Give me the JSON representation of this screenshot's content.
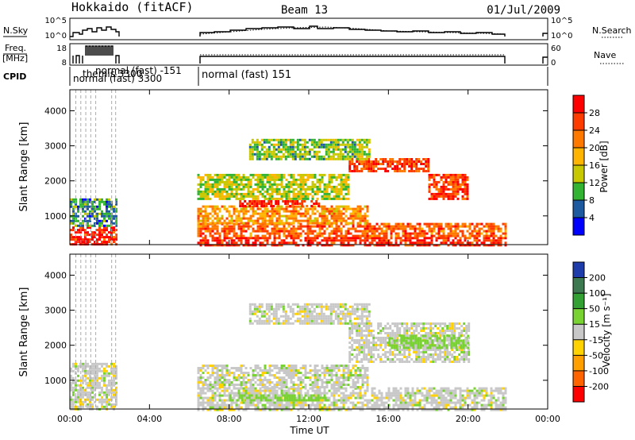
{
  "header": {
    "station": "Hokkaido (fitACF)",
    "beam": "Beam 13",
    "date": "01/Jul/2009"
  },
  "strips": {
    "nsky": {
      "label": "N.Sky",
      "ticks": [
        "10^5",
        "10^0"
      ],
      "right_label": "N.Search",
      "right_ticks": [
        "10^5",
        "10^0"
      ]
    },
    "freq": {
      "label": "Freq.",
      "unit": "[MHz]",
      "ticks": [
        "18",
        "8"
      ],
      "right_label": "Nave",
      "right_ticks": [
        "60",
        "0"
      ]
    },
    "cpid": {
      "label": "CPID",
      "modes": [
        {
          "text": "normal (fast)  151"
        },
        {
          "text": "normal (fast) -151"
        },
        {
          "text": "themis 3300"
        },
        {
          "text": "normal (fast) 3300"
        }
      ]
    }
  },
  "chart_data": [
    {
      "type": "heatmap",
      "name": "power",
      "xlabel": "Time UT",
      "ylabel": "Slant Range [km]",
      "x_ticks": [
        "00:00",
        "04:00",
        "08:00",
        "12:00",
        "16:00",
        "20:00",
        "00:00"
      ],
      "x_range_hours": [
        0,
        24
      ],
      "ylim": [
        180,
        4600
      ],
      "y_ticks": [
        1000,
        2000,
        3000,
        4000
      ],
      "colorbar": {
        "label": "Power [dB]",
        "ticks": [
          "28",
          "24",
          "20",
          "16",
          "12",
          "8",
          "4"
        ],
        "levels": [
          {
            "value": 30,
            "color": "#ff0000"
          },
          {
            "value": 26,
            "color": "#ff3c00"
          },
          {
            "value": 22,
            "color": "#ff7800"
          },
          {
            "value": 18,
            "color": "#ffb400"
          },
          {
            "value": 14,
            "color": "#c8c800"
          },
          {
            "value": 10,
            "color": "#32b432"
          },
          {
            "value": 6,
            "color": "#1e5aa0"
          },
          {
            "value": 2,
            "color": "#0000ff"
          }
        ]
      },
      "data_gaps_hours": [
        [
          2.3,
          6.4
        ],
        [
          21.9,
          23.7
        ]
      ],
      "bands": [
        {
          "t0": 0.0,
          "t1": 2.3,
          "r0": 180,
          "r1": 700,
          "value": 28
        },
        {
          "t0": 0.0,
          "t1": 2.3,
          "r0": 700,
          "r1": 1500,
          "value": 8
        },
        {
          "t0": 6.4,
          "t1": 21.9,
          "r0": 180,
          "r1": 400,
          "value": 28
        },
        {
          "t0": 6.4,
          "t1": 21.9,
          "r0": 400,
          "r1": 800,
          "value": 24
        },
        {
          "t0": 6.4,
          "t1": 15.0,
          "r0": 800,
          "r1": 1300,
          "value": 20
        },
        {
          "t0": 8.5,
          "t1": 12.5,
          "r0": 1300,
          "r1": 1450,
          "value": 28
        },
        {
          "t0": 6.4,
          "t1": 14.0,
          "r0": 1500,
          "r1": 2200,
          "value": 14
        },
        {
          "t0": 14.0,
          "t1": 18.0,
          "r0": 2300,
          "r1": 2650,
          "value": 26
        },
        {
          "t0": 18.0,
          "t1": 20.0,
          "r0": 1500,
          "r1": 2200,
          "value": 26
        },
        {
          "t0": 9.0,
          "t1": 15.0,
          "r0": 2600,
          "r1": 3200,
          "value": 12
        }
      ]
    },
    {
      "type": "heatmap",
      "name": "velocity",
      "xlabel": "Time UT",
      "ylabel": "Slant Range [km]",
      "x_ticks": [
        "00:00",
        "04:00",
        "08:00",
        "12:00",
        "16:00",
        "20:00",
        "00:00"
      ],
      "x_range_hours": [
        0,
        24
      ],
      "ylim": [
        180,
        4600
      ],
      "y_ticks": [
        1000,
        2000,
        3000,
        4000
      ],
      "colorbar": {
        "label": "Velocity [m s⁻¹]",
        "ticks": [
          "200",
          "100",
          "50",
          "15",
          "-15",
          "-50",
          "-100",
          "-200"
        ],
        "levels": [
          {
            "value": 250,
            "color": "#1e3caa"
          },
          {
            "value": 150,
            "color": "#3c7850"
          },
          {
            "value": 75,
            "color": "#32a032"
          },
          {
            "value": 30,
            "color": "#78d232"
          },
          {
            "value": 0,
            "color": "#c8c8c8"
          },
          {
            "value": -30,
            "color": "#ffd200"
          },
          {
            "value": -75,
            "color": "#ffa000"
          },
          {
            "value": -150,
            "color": "#ff6400"
          },
          {
            "value": -250,
            "color": "#ff0000"
          }
        ]
      },
      "data_gaps_hours": [
        [
          2.3,
          6.4
        ],
        [
          21.9,
          23.7
        ]
      ],
      "bands": [
        {
          "t0": 0.0,
          "t1": 2.3,
          "r0": 180,
          "r1": 1500,
          "value": 0
        },
        {
          "t0": 6.4,
          "t1": 21.9,
          "r0": 180,
          "r1": 800,
          "value": 0
        },
        {
          "t0": 6.4,
          "t1": 15.0,
          "r0": 800,
          "r1": 1450,
          "value": 0
        },
        {
          "t0": 8.0,
          "t1": 13.0,
          "r0": 400,
          "r1": 600,
          "value": 30
        },
        {
          "t0": 14.0,
          "t1": 20.0,
          "r0": 1500,
          "r1": 2650,
          "value": 0
        },
        {
          "t0": 16.0,
          "t1": 20.0,
          "r0": 1900,
          "r1": 2300,
          "value": 30
        },
        {
          "t0": 9.0,
          "t1": 15.0,
          "r0": 2600,
          "r1": 3200,
          "value": 0
        }
      ]
    }
  ]
}
